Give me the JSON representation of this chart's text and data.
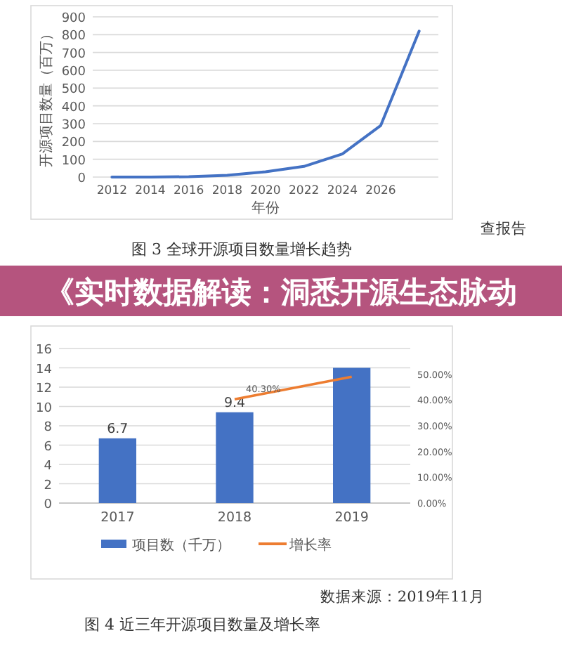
{
  "chart_data": [
    {
      "type": "line",
      "title": "图 3 全球开源项目数量增长趋势",
      "xlabel": "年份",
      "ylabel": "开源项目数量（百万）",
      "categories": [
        "2012",
        "2014",
        "2016",
        "2018",
        "2020",
        "2022",
        "2024",
        "2026",
        null
      ],
      "values": [
        0,
        0,
        2,
        10,
        30,
        60,
        130,
        290,
        820
      ],
      "color": "#4472c4",
      "ylim": [
        0,
        900
      ],
      "yticks": [
        0,
        100,
        200,
        300,
        400,
        500,
        600,
        700,
        800,
        900
      ],
      "grid": "y",
      "annotations": [
        "查报告"
      ]
    },
    {
      "type": "bar",
      "title": "图 4 近三年开源项目数量及增长率",
      "categories": [
        "2017",
        "2018",
        "2019"
      ],
      "series": [
        {
          "name": "项目数（千万）",
          "color": "#4472c4",
          "values": [
            6.7,
            9.4,
            14
          ],
          "value_labels": [
            "6.7",
            "9.4",
            null
          ]
        },
        {
          "name": "增长率",
          "type": "line",
          "axis": "y2",
          "color": "#ed7d31",
          "values": [
            null,
            40.3,
            49
          ],
          "value_labels": [
            null,
            "40.30%",
            null
          ]
        }
      ],
      "ylim": [
        0,
        16
      ],
      "yticks": [
        0,
        2,
        4,
        6,
        8,
        10,
        12,
        14,
        16
      ],
      "y2lim": [
        0,
        60
      ],
      "y2ticks": [
        {
          "value": 0,
          "label": "0.00%"
        },
        {
          "value": 10,
          "label": "10.00%"
        },
        {
          "value": 20,
          "label": "20.00%"
        },
        {
          "value": 30,
          "label": "30.00%"
        },
        {
          "value": 40,
          "label": "40.00%"
        },
        {
          "value": 50,
          "label": "50.00%"
        }
      ],
      "grid": "y",
      "legend": "bottom",
      "annotations": [
        "数据来源：2019年11月"
      ]
    },
    {
      "type": "other",
      "title": "《实时数据解读：洞悉开源生态脉动"
    }
  ]
}
